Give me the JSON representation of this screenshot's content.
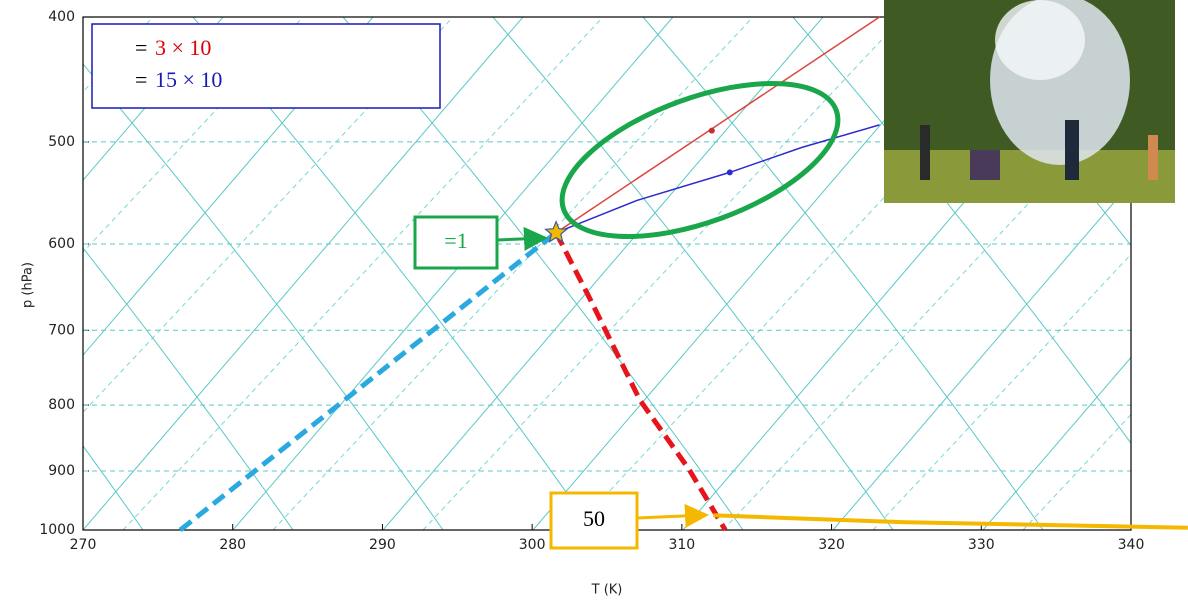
{
  "chart_data": {
    "type": "line",
    "x_label": "T (K)",
    "y_label": "p (hPa)",
    "xlim": [
      270,
      340
    ],
    "ylim": [
      1000,
      400
    ],
    "y_log": true,
    "xticks": [
      270,
      280,
      290,
      300,
      310,
      320,
      330,
      340
    ],
    "yticks": [
      400,
      500,
      600,
      700,
      800,
      900,
      1000
    ],
    "grid": true,
    "series": [
      {
        "color": "#29a9e0",
        "style": "dashed",
        "width": 5,
        "x": [
          276.5,
          301.6
        ],
        "values": [
          1000,
          588
        ]
      },
      {
        "color": "#e8141c",
        "style": "dashed",
        "width": 5,
        "x": [
          301.6,
          303.9,
          307.2,
          310.5,
          312.9
        ],
        "values": [
          588,
          663,
          793,
          898,
          1000
        ]
      },
      {
        "color": "#f5b800",
        "style": "solid",
        "width": 4,
        "x": [
          312.1,
          324.6,
          343.8
        ],
        "values": [
          974,
          986,
          996
        ]
      },
      {
        "color": "#e0443c",
        "style": "solid",
        "width": 1.5,
        "x": [
          301.6,
          323.2
        ],
        "values": [
          588,
          400
        ]
      },
      {
        "color": "#2b2bd0",
        "style": "solid",
        "width": 1.5,
        "x": [
          301.6,
          307,
          313.2,
          318,
          323.2
        ],
        "values": [
          588,
          555,
          528,
          505,
          485
        ]
      },
      {
        "color": "#c0302c",
        "style": "none",
        "marker": "dot",
        "x": [
          312.0
        ],
        "values": [
          490
        ]
      },
      {
        "color": "#2b2bd0",
        "style": "none",
        "marker": "dot",
        "x": [
          313.2
        ],
        "values": [
          528
        ]
      },
      {
        "color": "#f5b800",
        "style": "none",
        "marker": "star",
        "x": [
          301.6
        ],
        "values": [
          588
        ]
      }
    ],
    "annotations": [
      {
        "prefix": "=",
        "text": "3 × 10",
        "color": "#e00000"
      },
      {
        "prefix": "=",
        "text": "15 × 10",
        "color": "#1a1ab4"
      },
      {
        "text": "=1",
        "color": "#1aa64a"
      },
      {
        "text": "50",
        "color": "#000000"
      }
    ]
  }
}
